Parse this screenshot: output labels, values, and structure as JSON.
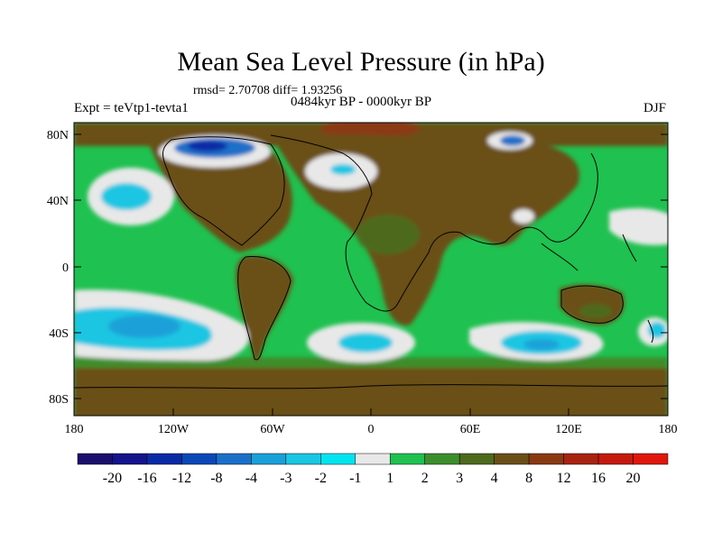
{
  "title": "Mean Sea Level Pressure (in hPa)",
  "subtitle_stats": "rmsd= 2.70708 diff= 1.93256",
  "period": "0484kyr BP - 0000kyr BP",
  "experiment": "Expt = teVtp1-tevta1",
  "season": "DJF",
  "lat_ticks": [
    "80N",
    "40N",
    "0",
    "40S",
    "80S"
  ],
  "lon_ticks": [
    "180",
    "120W",
    "60W",
    "0",
    "60E",
    "120E",
    "180"
  ],
  "colorbar": {
    "labels": [
      "-20",
      "-16",
      "-12",
      "-8",
      "-4",
      "-3",
      "-2",
      "-1",
      "1",
      "2",
      "3",
      "4",
      "8",
      "12",
      "16",
      "20"
    ],
    "colors": [
      "#1a0f6e",
      "#14148c",
      "#0a2aa6",
      "#0a48b8",
      "#1a70c8",
      "#1aa0d8",
      "#1ac6e2",
      "#00e4f0",
      "#e8e8e8",
      "#1fc150",
      "#3d8e2c",
      "#4d6a1e",
      "#6b4f18",
      "#8a3a12",
      "#a82410",
      "#c41a0e",
      "#e0180c"
    ]
  },
  "field_colors": {
    "brown": "#6b4f18",
    "olive": "#4d6a1e",
    "dark_green": "#3d8e2c",
    "green": "#1fc150",
    "white": "#e8e8e8",
    "cyan": "#1ac6e2",
    "deep_cyan": "#1aa0d8",
    "blue": "#1a70c8",
    "navy": "#0a2aa6",
    "red_brown": "#8a3a12",
    "coast": "#000000"
  }
}
